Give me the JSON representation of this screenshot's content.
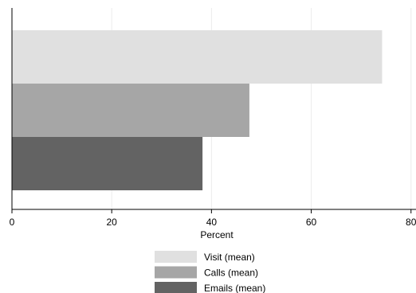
{
  "chart_data": {
    "type": "bar",
    "orientation": "horizontal",
    "categories": [
      "Visit (mean)",
      "Calls (mean)",
      "Emails (mean)"
    ],
    "series": [
      {
        "name": "Visit (mean)",
        "value": 74.2,
        "color": "#e0e0e0"
      },
      {
        "name": "Calls (mean)",
        "value": 47.6,
        "color": "#a6a6a6"
      },
      {
        "name": "Emails (mean)",
        "value": 38.2,
        "color": "#636363"
      }
    ],
    "xlabel": "Percent",
    "xlim": [
      0,
      81
    ],
    "xticks": [
      0,
      20,
      40,
      60,
      80
    ],
    "grid": "vertical",
    "legend_position": "bottom"
  }
}
